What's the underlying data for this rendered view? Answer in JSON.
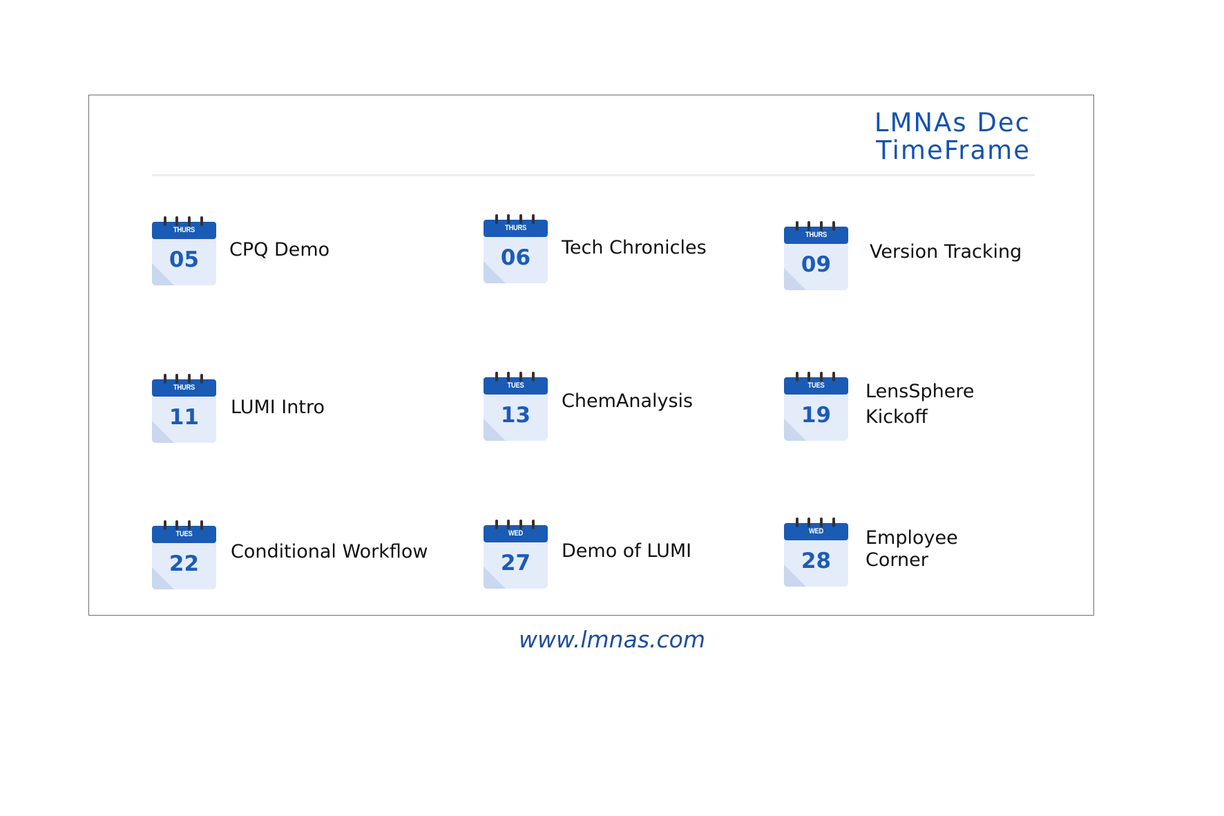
{
  "title": {
    "line1": "LMNAs Dec",
    "line2": "TimeFrame"
  },
  "events": [
    {
      "dow": "THURS",
      "day": "05",
      "label": "CPQ Demo"
    },
    {
      "dow": "THURS",
      "day": "06",
      "label": "Tech Chronicles"
    },
    {
      "dow": "THURS",
      "day": "09",
      "label": "Version Tracking"
    },
    {
      "dow": "THURS",
      "day": "11",
      "label": "LUMI Intro"
    },
    {
      "dow": "TUES",
      "day": "13",
      "label": "ChemAnalysis"
    },
    {
      "dow": "TUES",
      "day": "19",
      "label": "LensSphere",
      "label2": "Kickoff"
    },
    {
      "dow": "TUES",
      "day": "22",
      "label": "Conditional Workflow"
    },
    {
      "dow": "WED",
      "day": "27",
      "label": "Demo of LUMI"
    },
    {
      "dow": "WED",
      "day": "28",
      "label": "Employee",
      "label2": "Corner"
    }
  ],
  "website": "www.lmnas.com",
  "colors": {
    "accent": "#1452b3",
    "calendar_header": "#1a5bb5",
    "calendar_body": "#e4ecfa",
    "calendar_day": "#1b5cb8"
  },
  "icons": {
    "calendar": "calendar-icon"
  }
}
